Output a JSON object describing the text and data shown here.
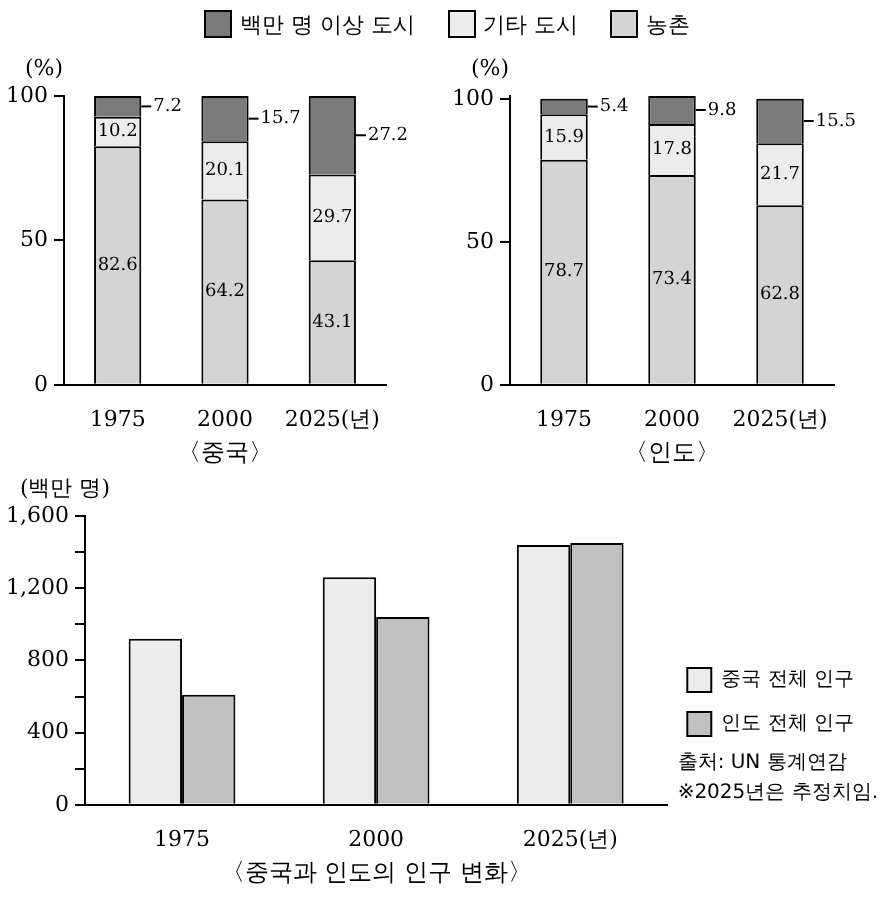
{
  "chart_data": [
    {
      "type": "bar",
      "stacked": true,
      "xlabel": "〈중국〉",
      "ylabel": "(%)",
      "categories": [
        "1975",
        "2000",
        "2025(년)"
      ],
      "series": [
        {
          "name": "농촌",
          "color": "#d4d4d4",
          "values": [
            82.6,
            64.2,
            43.1
          ]
        },
        {
          "name": "기타 도시",
          "color": "#ececec",
          "values": [
            10.2,
            20.1,
            29.7
          ]
        },
        {
          "name": "백만 명 이상 도시",
          "color": "#7a7a7a",
          "values": [
            7.2,
            15.7,
            27.2
          ]
        }
      ],
      "ylim": [
        0,
        100
      ],
      "yticks": [
        0,
        50,
        100
      ],
      "grid": false,
      "legend": "top",
      "data_labels": true
    },
    {
      "type": "bar",
      "stacked": true,
      "xlabel": "〈인도〉",
      "ylabel": "(%)",
      "categories": [
        "1975",
        "2000",
        "2025(년)"
      ],
      "series": [
        {
          "color": "#d4d4d4",
          "values": [
            78.7,
            73.4,
            62.8
          ]
        },
        {
          "color": "#ececec",
          "values": [
            15.9,
            17.8,
            21.7
          ]
        },
        {
          "color": "#7a7a7a",
          "values": [
            5.4,
            9.8,
            15.5
          ]
        }
      ],
      "ylim": [
        0,
        101
      ],
      "yticks": [
        0,
        50,
        100
      ],
      "grid": false,
      "data_labels": true
    },
    {
      "type": "bar",
      "xlabel": "〈중국과 인도의 인구 변화〉",
      "ylabel": "(백만 명)",
      "categories": [
        "1975",
        "2000",
        "2025(년)"
      ],
      "series": [
        {
          "name": "중국 전체 인구",
          "color": "#ececec",
          "values": [
            920,
            1260,
            1440
          ]
        },
        {
          "name": "인도 전체 인구",
          "color": "#c0c0c0",
          "values": [
            610,
            1040,
            1450
          ]
        }
      ],
      "ylim": [
        0,
        1600
      ],
      "yticks": [
        0,
        {
          "value": 200,
          "label": null
        },
        {
          "value": 400,
          "label": "400"
        },
        {
          "value": 600,
          "label": null
        },
        {
          "value": 800,
          "label": "800"
        },
        {
          "value": 1000,
          "label": null
        },
        {
          "value": 1200,
          "label": "1,200"
        },
        {
          "value": 1400,
          "label": null
        },
        {
          "value": 1600,
          "label": "1,600"
        }
      ],
      "grid": false,
      "legend": "right",
      "annotations": [
        "출처: UN 통계연감",
        "※2025년은 추정치임."
      ]
    }
  ]
}
